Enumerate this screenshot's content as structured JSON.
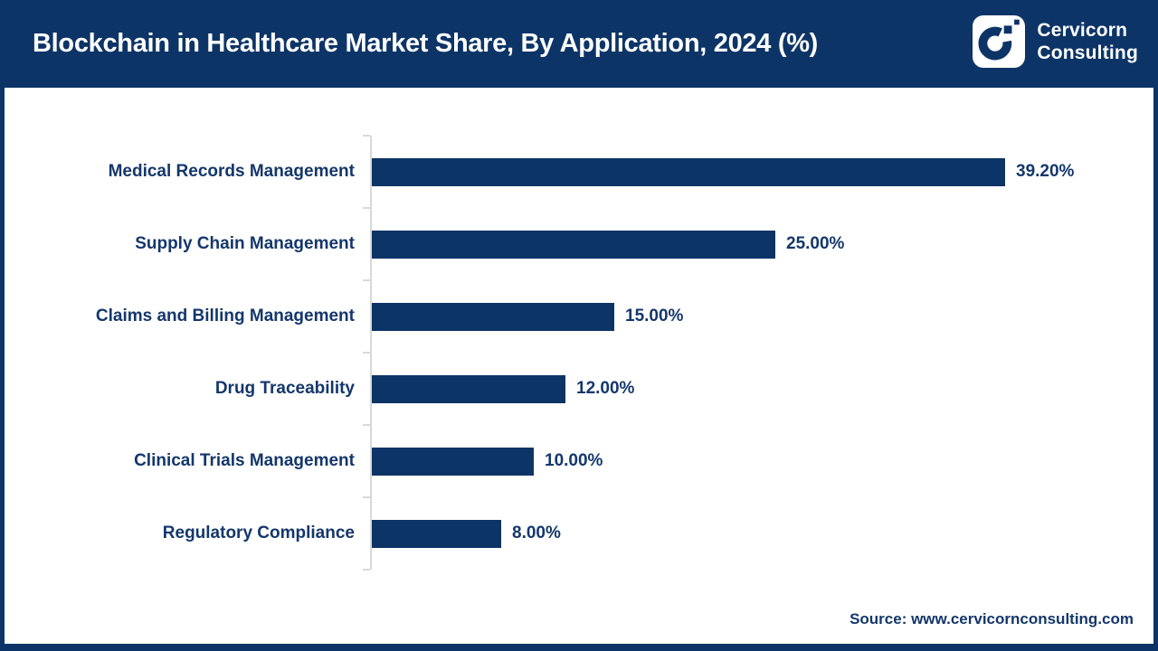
{
  "colors": {
    "navy": "#0d3466",
    "text_navy": "#14376b",
    "axis_gray": "#d9d9d9",
    "header_bg": "#0d3466",
    "bar_fill": "#0d3466",
    "title_text": "#ffffff"
  },
  "header": {
    "title": "Blockchain in Healthcare Market Share, By Application, 2024 (%)"
  },
  "logo": {
    "icon": "cervicorn-c-mark-icon",
    "line1": "Cervicorn",
    "line2": "Consulting"
  },
  "chart_data": {
    "type": "bar",
    "orientation": "horizontal",
    "title": "Blockchain in Healthcare Market Share, By Application, 2024 (%)",
    "xlabel": "",
    "ylabel": "",
    "categories": [
      "Medical Records Management",
      "Supply Chain Management",
      "Claims and Billing Management",
      "Drug Traceability",
      "Clinical Trials Management",
      "Regulatory Compliance"
    ],
    "values": [
      39.2,
      25.0,
      15.0,
      12.0,
      10.0,
      8.0
    ],
    "value_labels": [
      "39.20%",
      "25.00%",
      "15.00%",
      "12.00%",
      "10.00%",
      "8.00%"
    ],
    "xlim": [
      0,
      48
    ],
    "grid": false,
    "legend": false,
    "data_labels_position": "outside-end"
  },
  "source": {
    "text": "Source: www.cervicornconsulting.com"
  }
}
